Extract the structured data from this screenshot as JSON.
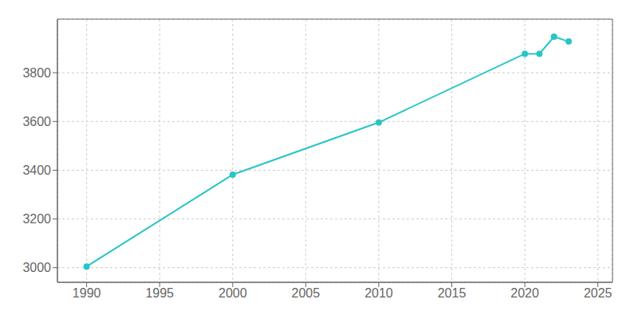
{
  "chart_data": {
    "type": "line",
    "x": [
      1990,
      2000,
      2010,
      2020,
      2021,
      2022,
      2023
    ],
    "values": [
      3005,
      3382,
      3596,
      3878,
      3878,
      3948,
      3928
    ],
    "color": "#29C5C5",
    "marker": "circle",
    "xlim": [
      1988,
      2026
    ],
    "ylim": [
      2940,
      4020
    ],
    "xticks": [
      1990,
      1995,
      2000,
      2005,
      2010,
      2015,
      2020,
      2025
    ],
    "yticks": [
      3000,
      3200,
      3400,
      3600,
      3800
    ],
    "grid": true
  }
}
